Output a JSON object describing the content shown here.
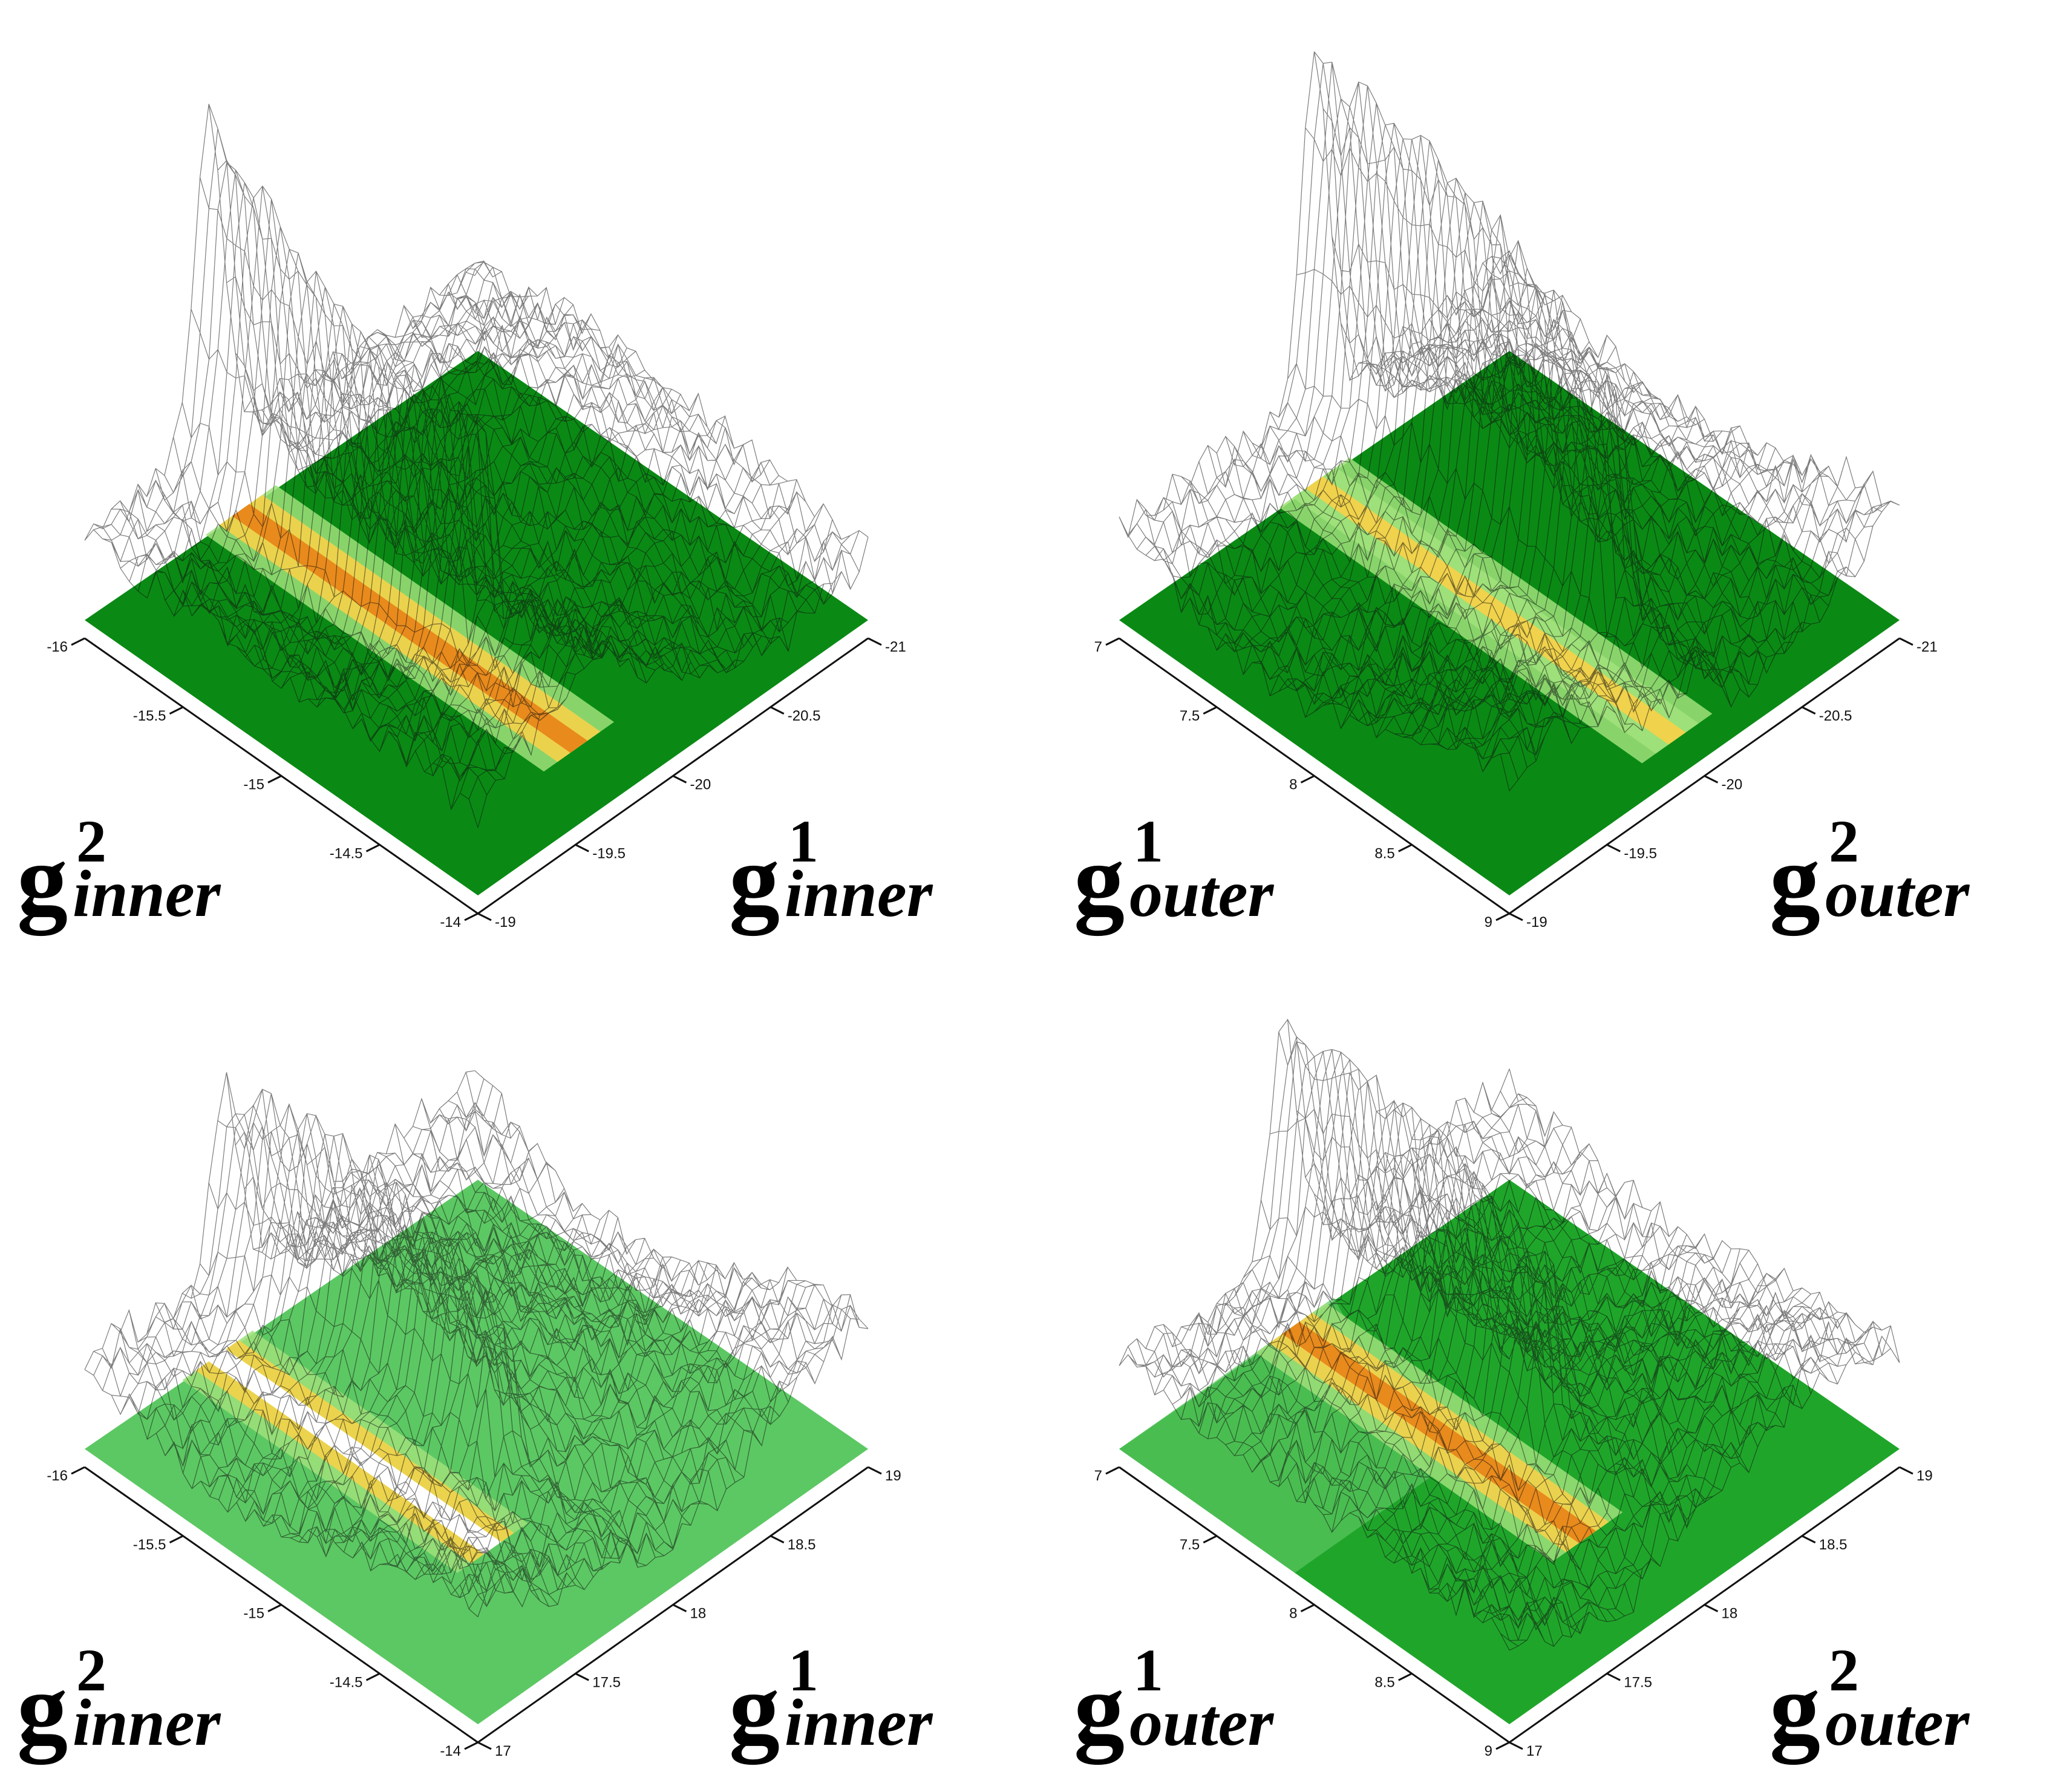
{
  "colors": {
    "floor_dark": "#0a8a14",
    "floor_mid": "#1fa62a",
    "floor_light": "#5cc863",
    "band_light": "#9fe07a",
    "band_yellow": "#f0d24c",
    "band_orange": "#e88a1c",
    "band_white": "#ffffff",
    "mesh": "#111111",
    "axis": "#111111"
  },
  "chart_data": [
    {
      "type": "surface",
      "panel": "top-left",
      "left_axis": {
        "ticks": [
          "-16",
          "-15.5",
          "-15",
          "-14.5",
          "-14"
        ]
      },
      "right_axis": {
        "ticks": [
          "-21",
          "-20.5",
          "-20",
          "-19.5",
          "-19"
        ]
      },
      "left_label": {
        "base": "g",
        "sup": "2",
        "sub": "inner"
      },
      "right_label": {
        "base": "g",
        "sup": "1",
        "sub": "inner"
      },
      "floor_style": "dark",
      "band": {
        "s": 0.4,
        "p": 0.14,
        "core": "band_orange",
        "halo": "band_yellow"
      },
      "peak": {
        "s": 0.32,
        "p": 0.3,
        "height": 0.58
      }
    },
    {
      "type": "surface",
      "panel": "top-right",
      "left_axis": {
        "ticks": [
          "7",
          "7.5",
          "8",
          "8.5",
          "9"
        ]
      },
      "right_axis": {
        "ticks": [
          "-21",
          "-20.5",
          "-20",
          "-19.5",
          "-19"
        ]
      },
      "left_label": {
        "base": "g",
        "sup": "1",
        "sub": "outer"
      },
      "right_label": {
        "base": "g",
        "sup": "2",
        "sub": "outer"
      },
      "floor_style": "dark",
      "band": {
        "s": 0.5,
        "p": 0.07,
        "core": "band_yellow",
        "halo": "band_light"
      },
      "peak": {
        "s": 0.5,
        "p": 0.22,
        "height": 0.62
      }
    },
    {
      "type": "surface",
      "panel": "bottom-left",
      "left_axis": {
        "ticks": [
          "-16",
          "-15.5",
          "-15",
          "-14.5",
          "-14"
        ]
      },
      "right_axis": {
        "ticks": [
          "19",
          "18.5",
          "18",
          "17.5",
          "17"
        ]
      },
      "left_label": {
        "base": "g",
        "sup": "2",
        "sub": "inner"
      },
      "right_label": {
        "base": "g",
        "sup": "1",
        "sub": "inner"
      },
      "floor_style": "light",
      "band": {
        "s": 0.34,
        "p": 0.3,
        "core": "band_white",
        "halo": "band_yellow"
      },
      "peak": {
        "s": 0.36,
        "p": 0.28,
        "height": 0.34
      }
    },
    {
      "type": "surface",
      "panel": "bottom-right",
      "left_axis": {
        "ticks": [
          "7",
          "7.5",
          "8",
          "8.5",
          "9"
        ]
      },
      "right_axis": {
        "ticks": [
          "19",
          "18.5",
          "18",
          "17.5",
          "17"
        ]
      },
      "left_label": {
        "base": "g",
        "sup": "1",
        "sub": "outer"
      },
      "right_label": {
        "base": "g",
        "sup": "2",
        "sub": "outer"
      },
      "floor_style": "mixed",
      "band": {
        "s": 0.44,
        "p": 0.24,
        "core": "band_orange",
        "halo": "band_yellow"
      },
      "peak": {
        "s": 0.42,
        "p": 0.3,
        "height": 0.42
      }
    }
  ]
}
